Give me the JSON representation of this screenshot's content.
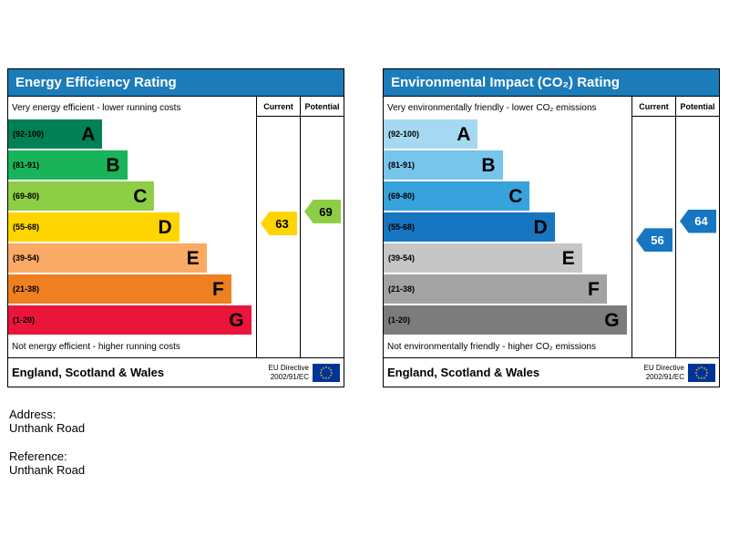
{
  "charts": [
    {
      "title": "Energy Efficiency Rating",
      "columns": {
        "current": "Current",
        "potential": "Potential"
      },
      "top_note": "Very energy efficient - lower running costs",
      "bottom_note": "Not energy efficient - higher running costs",
      "bands": [
        {
          "letter": "A",
          "label": "(92-100)",
          "lo": 92,
          "hi": 100,
          "color": "#008054",
          "width_pct": 38
        },
        {
          "letter": "B",
          "label": "(81-91)",
          "lo": 81,
          "hi": 91,
          "color": "#19b459",
          "width_pct": 48
        },
        {
          "letter": "C",
          "label": "(69-80)",
          "lo": 69,
          "hi": 80,
          "color": "#8dce46",
          "width_pct": 59
        },
        {
          "letter": "D",
          "label": "(55-68)",
          "lo": 55,
          "hi": 68,
          "color": "#ffd500",
          "width_pct": 69
        },
        {
          "letter": "E",
          "label": "(39-54)",
          "lo": 39,
          "hi": 54,
          "color": "#fbaa65",
          "width_pct": 80
        },
        {
          "letter": "F",
          "label": "(21-38)",
          "lo": 21,
          "hi": 38,
          "color": "#ee8022",
          "width_pct": 90
        },
        {
          "letter": "G",
          "label": "(1-20)",
          "lo": 1,
          "hi": 20,
          "color": "#e9153b",
          "width_pct": 98
        }
      ],
      "current": {
        "value": 63,
        "color": "#ffd500",
        "text_color": "#000000"
      },
      "potential": {
        "value": 69,
        "color": "#8dce46",
        "text_color": "#000000"
      },
      "footer": {
        "region": "England, Scotland & Wales",
        "directive_line1": "EU Directive",
        "directive_line2": "2002/91/EC"
      }
    },
    {
      "title": "Environmental Impact (CO₂) Rating",
      "columns": {
        "current": "Current",
        "potential": "Potential"
      },
      "top_note": "Very environmentally friendly - lower CO₂ emissions",
      "bottom_note": "Not environmentally friendly - higher CO₂ emissions",
      "bands": [
        {
          "letter": "A",
          "label": "(92-100)",
          "lo": 92,
          "hi": 100,
          "color": "#a6d9f1",
          "width_pct": 38
        },
        {
          "letter": "B",
          "label": "(81-91)",
          "lo": 81,
          "hi": 91,
          "color": "#78c5ec",
          "width_pct": 48
        },
        {
          "letter": "C",
          "label": "(69-80)",
          "lo": 69,
          "hi": 80,
          "color": "#37a2db",
          "width_pct": 59
        },
        {
          "letter": "D",
          "label": "(55-68)",
          "lo": 55,
          "hi": 68,
          "color": "#1776c1",
          "width_pct": 69
        },
        {
          "letter": "E",
          "label": "(39-54)",
          "lo": 39,
          "hi": 54,
          "color": "#c6c6c6",
          "width_pct": 80
        },
        {
          "letter": "F",
          "label": "(21-38)",
          "lo": 21,
          "hi": 38,
          "color": "#a3a3a3",
          "width_pct": 90
        },
        {
          "letter": "G",
          "label": "(1-20)",
          "lo": 1,
          "hi": 20,
          "color": "#7c7c7c",
          "width_pct": 98
        }
      ],
      "current": {
        "value": 56,
        "color": "#1776c1",
        "text_color": "#ffffff"
      },
      "potential": {
        "value": 64,
        "color": "#1776c1",
        "text_color": "#ffffff"
      },
      "footer": {
        "region": "England, Scotland & Wales",
        "directive_line1": "EU Directive",
        "directive_line2": "2002/91/EC"
      }
    }
  ],
  "details": {
    "address_label": "Address:",
    "address_value": "Unthank Road",
    "reference_label": "Reference:",
    "reference_value": "Unthank Road"
  },
  "chart_data": [
    {
      "type": "bar",
      "title": "Energy Efficiency Rating",
      "categories": [
        "A (92-100)",
        "B (81-91)",
        "C (69-80)",
        "D (55-68)",
        "E (39-54)",
        "F (21-38)",
        "G (1-20)"
      ],
      "series": [
        {
          "name": "Current",
          "values": [
            63
          ],
          "band": "D"
        },
        {
          "name": "Potential",
          "values": [
            69
          ],
          "band": "C"
        }
      ],
      "scale": [
        1,
        100
      ],
      "top_annotation": "Very energy efficient - lower running costs",
      "bottom_annotation": "Not energy efficient - higher running costs",
      "footer": "England, Scotland & Wales — EU Directive 2002/91/EC"
    },
    {
      "type": "bar",
      "title": "Environmental Impact (CO₂) Rating",
      "categories": [
        "A (92-100)",
        "B (81-91)",
        "C (69-80)",
        "D (55-68)",
        "E (39-54)",
        "F (21-38)",
        "G (1-20)"
      ],
      "series": [
        {
          "name": "Current",
          "values": [
            56
          ],
          "band": "D"
        },
        {
          "name": "Potential",
          "values": [
            64
          ],
          "band": "D"
        }
      ],
      "scale": [
        1,
        100
      ],
      "top_annotation": "Very environmentally friendly - lower CO₂ emissions",
      "bottom_annotation": "Not environmentally friendly - higher CO₂ emissions",
      "footer": "England, Scotland & Wales — EU Directive 2002/91/EC"
    }
  ]
}
